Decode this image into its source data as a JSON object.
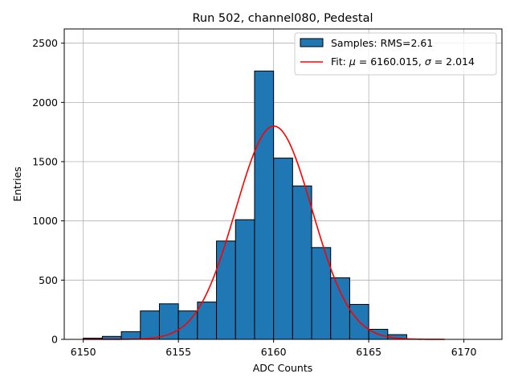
{
  "chart_data": {
    "type": "bar",
    "title": "Run 502, channel080, Pedestal",
    "xlabel": "ADC Counts",
    "ylabel": "Entries",
    "xlim": [
      6149,
      6172
    ],
    "ylim": [
      0,
      2620
    ],
    "xticks": [
      6150,
      6155,
      6160,
      6165,
      6170
    ],
    "yticks": [
      0,
      500,
      1000,
      1500,
      2000,
      2500
    ],
    "grid": true,
    "legend_position": "top-right",
    "colors": {
      "bar_fill": "#1f77b4",
      "bar_edge": "#000000",
      "fit_line": "#ff0000",
      "grid": "#b0b0b0"
    },
    "histogram": {
      "name": "Samples: RMS=2.61",
      "bin_edges": [
        6150,
        6151,
        6152,
        6153,
        6154,
        6155,
        6156,
        6157,
        6158,
        6159,
        6160,
        6161,
        6162,
        6163,
        6164,
        6165,
        6166,
        6167
      ],
      "counts": [
        10,
        25,
        65,
        240,
        300,
        240,
        315,
        830,
        1010,
        2265,
        1530,
        1295,
        775,
        520,
        295,
        85,
        40
      ]
    },
    "fit": {
      "name_prefix": "Fit: ",
      "mu_symbol": "μ",
      "mu_text": " = 6160.015, ",
      "sigma_symbol": "σ",
      "sigma_text": " = 2.014",
      "type": "gaussian",
      "mu": 6160.015,
      "sigma": 2.014,
      "amplitude": 1800,
      "x_range": [
        6150,
        6169
      ]
    }
  }
}
